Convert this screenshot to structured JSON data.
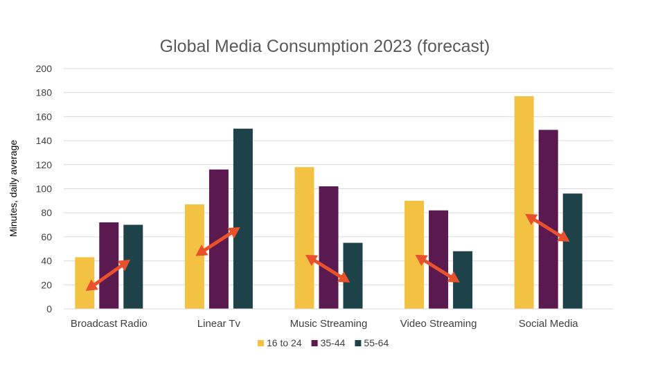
{
  "chart_data": {
    "type": "bar",
    "title": "Global Media Consumption 2023 (forecast)",
    "xlabel": "",
    "ylabel": "Minutes, daily average",
    "ylim": [
      0,
      200
    ],
    "yticks": [
      0,
      20,
      40,
      60,
      80,
      100,
      120,
      140,
      160,
      180,
      200
    ],
    "grid": true,
    "legend_position": "bottom",
    "categories": [
      "Broadcast Radio",
      "Linear Tv",
      "Music Streaming",
      "Video Streaming",
      "Social Media"
    ],
    "series": [
      {
        "name": "16 to 24",
        "color": "#F4C243",
        "values": [
          43,
          87,
          118,
          90,
          177
        ]
      },
      {
        "name": "35-44",
        "color": "#5A1A50",
        "values": [
          72,
          116,
          102,
          82,
          149
        ]
      },
      {
        "name": "55-64",
        "color": "#1D424A",
        "values": [
          70,
          150,
          55,
          48,
          96
        ]
      }
    ],
    "annotations": {
      "type": "double-headed-arrow",
      "color": "#E9502C",
      "arrows": [
        {
          "category": "Broadcast Radio",
          "from": 15,
          "to": 41
        },
        {
          "category": "Linear Tv",
          "from": 44,
          "to": 68
        },
        {
          "category": "Music Streaming",
          "from": 45,
          "to": 22
        },
        {
          "category": "Video Streaming",
          "from": 45,
          "to": 22
        },
        {
          "category": "Social Media",
          "from": 79,
          "to": 56
        }
      ]
    }
  }
}
